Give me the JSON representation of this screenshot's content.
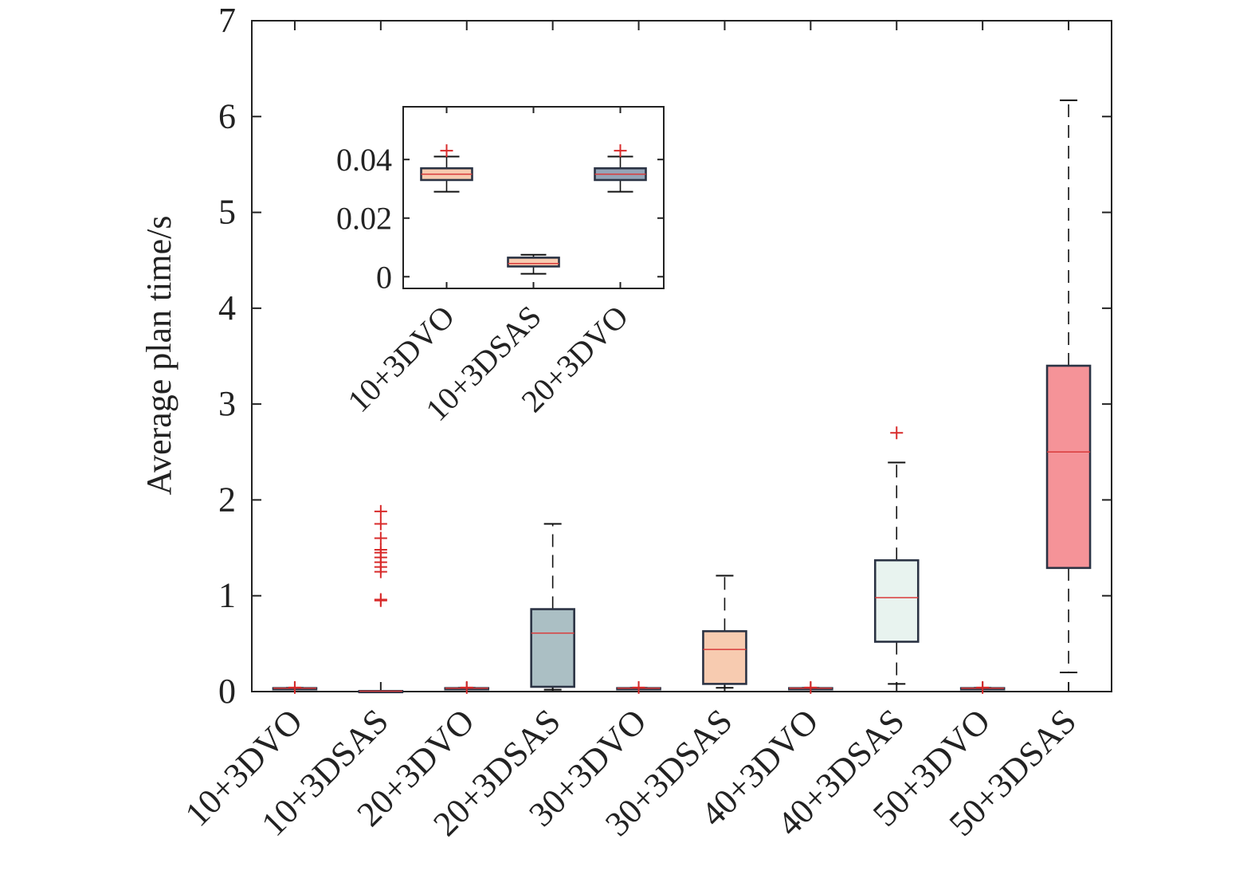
{
  "chart_data": [
    {
      "type": "box",
      "ylabel": "Average plan time/s",
      "xlabel": "",
      "ylim": [
        0,
        7
      ],
      "yticks": [
        "0",
        "1",
        "2",
        "3",
        "4",
        "5",
        "6",
        "7"
      ],
      "categories": [
        "10+3DVO",
        "10+3DSAS",
        "20+3DVO",
        "20+3DSAS",
        "30+3DVO",
        "30+3DSAS",
        "40+3DVO",
        "40+3DSAS",
        "50+3DVO",
        "50+3DSAS"
      ],
      "boxes": [
        {
          "label": "10+3DVO",
          "whisker_low": 0.029,
          "q1": 0.033,
          "median": 0.035,
          "q3": 0.036,
          "whisker_high": 0.04,
          "outliers": [
            0.043
          ],
          "color": "#f7cbb0"
        },
        {
          "label": "10+3DSAS",
          "whisker_low": 0.001,
          "q1": 0.003,
          "median": 0.004,
          "q3": 0.006,
          "whisker_high": 0.007,
          "outliers": [
            0.95,
            0.96,
            1.25,
            1.3,
            1.35,
            1.4,
            1.45,
            1.48,
            1.6,
            1.75,
            1.88
          ],
          "color": "#f7cbb0"
        },
        {
          "label": "20+3DVO",
          "whisker_low": 0.029,
          "q1": 0.033,
          "median": 0.035,
          "q3": 0.036,
          "whisker_high": 0.04,
          "outliers": [
            0.043
          ],
          "color": "#abbfc4"
        },
        {
          "label": "20+3DSAS",
          "whisker_low": 0.02,
          "q1": 0.05,
          "median": 0.61,
          "q3": 0.86,
          "whisker_high": 1.75,
          "outliers": [],
          "color": "#abbfc4"
        },
        {
          "label": "30+3DVO",
          "whisker_low": 0.029,
          "q1": 0.033,
          "median": 0.035,
          "q3": 0.036,
          "whisker_high": 0.04,
          "outliers": [
            0.043
          ],
          "color": "#f7cbb0"
        },
        {
          "label": "30+3DSAS",
          "whisker_low": 0.04,
          "q1": 0.08,
          "median": 0.44,
          "q3": 0.63,
          "whisker_high": 1.21,
          "outliers": [],
          "color": "#f7cbb0"
        },
        {
          "label": "40+3DVO",
          "whisker_low": 0.029,
          "q1": 0.033,
          "median": 0.035,
          "q3": 0.036,
          "whisker_high": 0.04,
          "outliers": [
            0.043
          ],
          "color": "#f7cbb0"
        },
        {
          "label": "40+3DSAS",
          "whisker_low": 0.08,
          "q1": 0.52,
          "median": 0.98,
          "q3": 1.37,
          "whisker_high": 2.39,
          "outliers": [
            2.7
          ],
          "color": "#e8f3ef"
        },
        {
          "label": "50+3DVO",
          "whisker_low": 0.029,
          "q1": 0.033,
          "median": 0.035,
          "q3": 0.036,
          "whisker_high": 0.04,
          "outliers": [
            0.043
          ],
          "color": "#f7cbb0"
        },
        {
          "label": "50+3DSAS",
          "whisker_low": 0.2,
          "q1": 1.29,
          "median": 2.5,
          "q3": 3.4,
          "whisker_high": 6.17,
          "outliers": [],
          "color": "#f59398"
        }
      ],
      "grid": false,
      "box_edge_color": "#2b3344",
      "median_color": "#d93a3a",
      "outlier_color": "#d82b2b",
      "whisker_color": "#111111"
    },
    {
      "type": "box",
      "title": "",
      "ylim": [
        -0.004,
        0.058
      ],
      "yticks": [
        "0",
        "0.02",
        "0.04"
      ],
      "ytick_values": [
        0,
        0.02,
        0.04
      ],
      "categories": [
        "10+3DVO",
        "10+3DSAS",
        "20+3DVO"
      ],
      "boxes": [
        {
          "label": "10+3DVO",
          "whisker_low": 0.029,
          "q1": 0.033,
          "median": 0.035,
          "q3": 0.037,
          "whisker_high": 0.041,
          "outliers": [
            0.043
          ],
          "color": "#f7cbb0"
        },
        {
          "label": "10+3DSAS",
          "whisker_low": 0.001,
          "q1": 0.0035,
          "median": 0.0045,
          "q3": 0.0065,
          "whisker_high": 0.0075,
          "outliers": [],
          "color": "#f7cbb0"
        },
        {
          "label": "20+3DVO",
          "whisker_low": 0.029,
          "q1": 0.033,
          "median": 0.035,
          "q3": 0.037,
          "whisker_high": 0.041,
          "outliers": [
            0.043
          ],
          "color": "#95a5b8"
        }
      ]
    }
  ]
}
